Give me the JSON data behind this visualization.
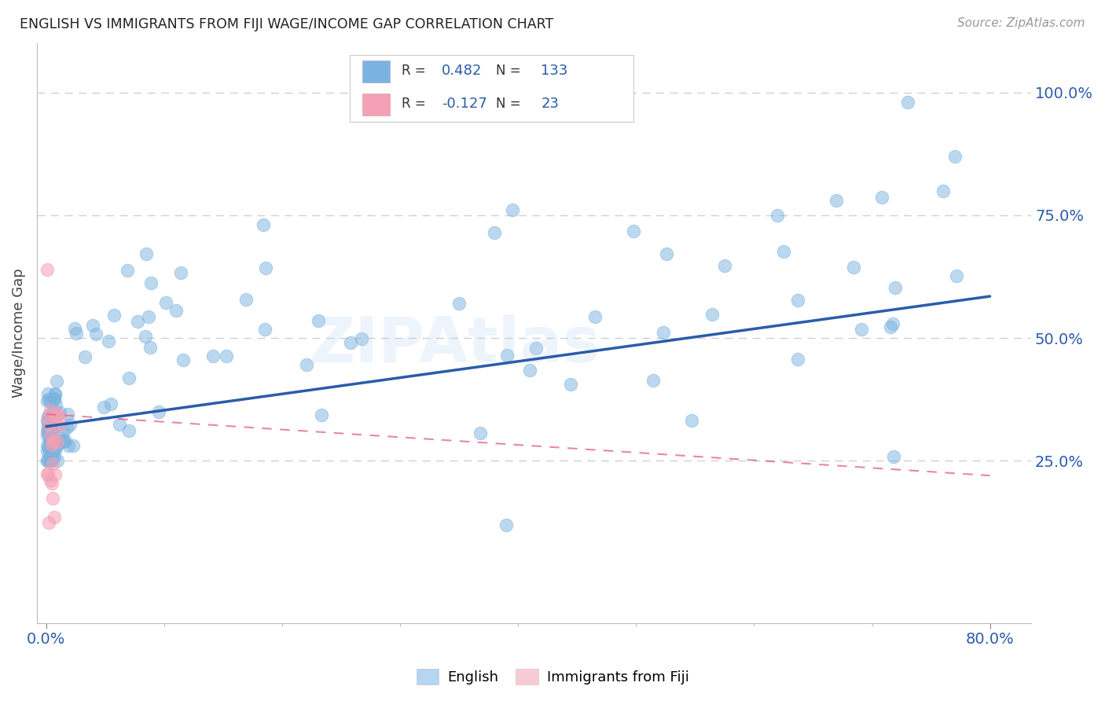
{
  "title": "ENGLISH VS IMMIGRANTS FROM FIJI WAGE/INCOME GAP CORRELATION CHART",
  "source": "Source: ZipAtlas.com",
  "ylabel": "Wage/Income Gap",
  "right_yticks": [
    "100.0%",
    "75.0%",
    "50.0%",
    "25.0%"
  ],
  "right_ytick_vals": [
    1.0,
    0.75,
    0.5,
    0.25
  ],
  "background_color": "#ffffff",
  "grid_color": "#cccccc",
  "blue_scatter_color": "#7ab3e0",
  "pink_scatter_color": "#f4a0b5",
  "blue_line_color": "#2a5caa",
  "pink_line_color": "#e06080",
  "legend_R_blue": "0.482",
  "legend_N_blue": "133",
  "legend_R_pink": "-0.127",
  "legend_N_pink": "23",
  "xlim_min": -0.008,
  "xlim_max": 0.835,
  "ylim_min": -0.08,
  "ylim_max": 1.1,
  "blue_line_x0": 0.0,
  "blue_line_x1": 0.8,
  "blue_line_y0": 0.32,
  "blue_line_y1": 0.585,
  "pink_line_x0": 0.0,
  "pink_line_x1": 0.8,
  "pink_line_y0": 0.345,
  "pink_line_y1": 0.22,
  "watermark": "ZIPAtlas"
}
